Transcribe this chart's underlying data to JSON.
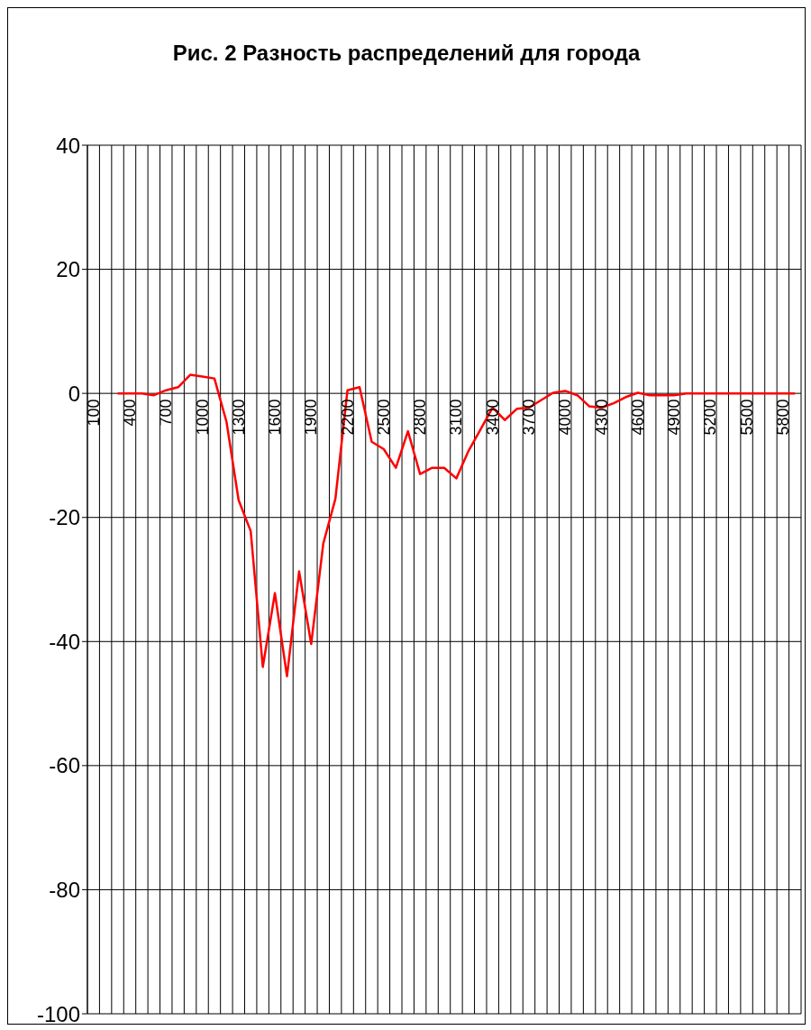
{
  "chart_data": {
    "type": "line",
    "title": "Рис. 2 Разность распределений для города",
    "categories": [
      "100",
      null,
      null,
      "400",
      null,
      null,
      "700",
      null,
      null,
      "1000",
      null,
      null,
      "1300",
      null,
      null,
      "1600",
      null,
      null,
      "1900",
      null,
      null,
      "2200",
      null,
      null,
      "2500",
      null,
      null,
      "2800",
      null,
      null,
      "3100",
      null,
      null,
      "3400",
      null,
      null,
      "3700",
      null,
      null,
      "4000",
      null,
      null,
      "4300",
      null,
      null,
      "4600",
      null,
      null,
      "4900",
      null,
      null,
      "5200",
      null,
      null,
      "5500",
      null,
      null,
      "5800",
      null
    ],
    "series": [
      {
        "color": "#ff0000",
        "values": [
          null,
          null,
          0,
          0,
          0,
          -0.3,
          0.5,
          1.0,
          3.0,
          2.7,
          2.4,
          -4.6,
          -17.2,
          -22.2,
          -44.1,
          -32.2,
          -45.6,
          -28.7,
          -40.4,
          -24.2,
          -17.0,
          0.5,
          1.0,
          -7.8,
          -9.0,
          -12.0,
          -6.1,
          -13.0,
          -12.0,
          -12.0,
          -13.7,
          -9.3,
          -5.8,
          -2.3,
          -4.3,
          -2.5,
          -2.3,
          -1.1,
          0.1,
          0.4,
          -0.3,
          -2.1,
          -2.3,
          -1.6,
          -0.6,
          0.1,
          -0.3,
          -0.3,
          -0.3,
          0,
          0,
          0,
          0,
          0,
          0,
          0,
          0,
          0,
          0
        ]
      }
    ],
    "ylim": [
      -100,
      40
    ],
    "yticks": [
      -100,
      -80,
      -60,
      -40,
      -20,
      0,
      20,
      40
    ],
    "grid": true
  }
}
